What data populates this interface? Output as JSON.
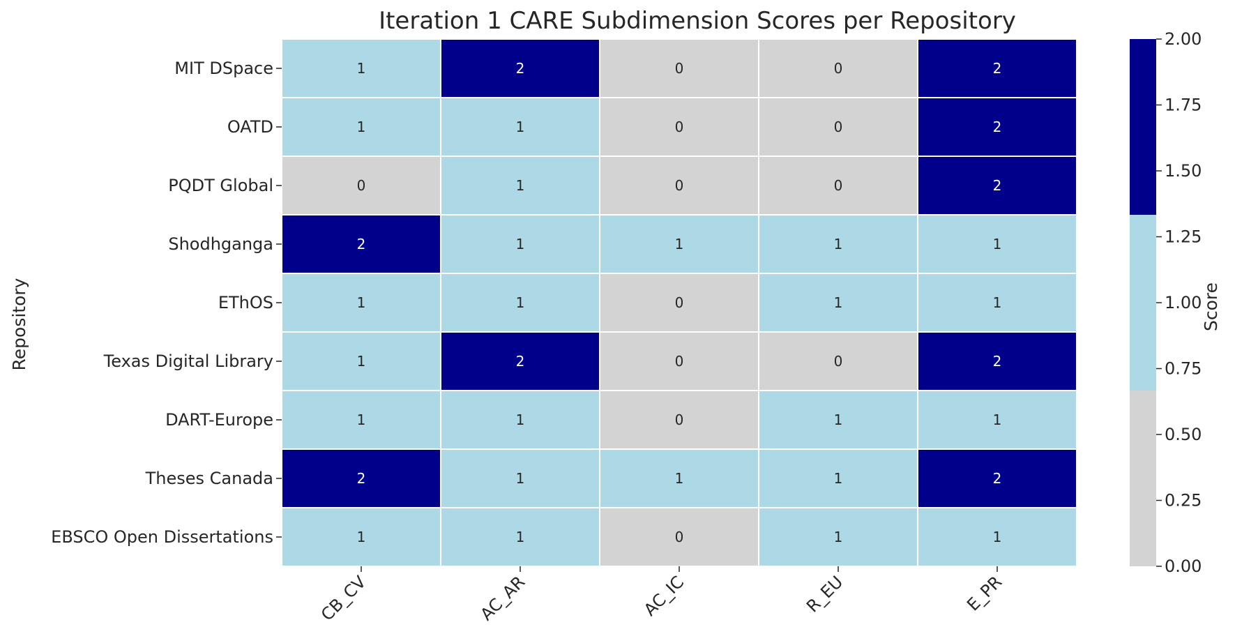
{
  "chart_data": {
    "type": "heatmap",
    "title": "Iteration 1 CARE Subdimension Scores per Repository",
    "ylabel": "Repository",
    "xlabel": "",
    "colorbar_label": "Score",
    "rows": [
      "MIT DSpace",
      "OATD",
      "PQDT Global",
      "Shodhganga",
      "EThOS",
      "Texas Digital Library",
      "DART-Europe",
      "Theses Canada",
      "EBSCO Open Dissertations"
    ],
    "columns": [
      "CB_CV",
      "AC_AR",
      "AC_IC",
      "R_EU",
      "E_PR"
    ],
    "values": [
      [
        1,
        2,
        0,
        0,
        2
      ],
      [
        1,
        1,
        0,
        0,
        2
      ],
      [
        0,
        1,
        0,
        0,
        2
      ],
      [
        2,
        1,
        1,
        1,
        1
      ],
      [
        1,
        1,
        0,
        1,
        1
      ],
      [
        1,
        2,
        0,
        0,
        2
      ],
      [
        1,
        1,
        0,
        1,
        1
      ],
      [
        2,
        1,
        1,
        1,
        2
      ],
      [
        1,
        1,
        0,
        1,
        1
      ]
    ],
    "colormap": {
      "colors": [
        "#d3d3d3",
        "#add8e6",
        "#00008b"
      ],
      "text_colors": [
        "#262626",
        "#262626",
        "#ffffff"
      ],
      "vmin": 0,
      "vmax": 2
    },
    "colorbar_ticks": [
      "0.00",
      "0.25",
      "0.50",
      "0.75",
      "1.00",
      "1.25",
      "1.50",
      "1.75",
      "2.00"
    ],
    "cell_border_color": "#ffffff",
    "grid": false,
    "legend": "colorbar-right"
  }
}
